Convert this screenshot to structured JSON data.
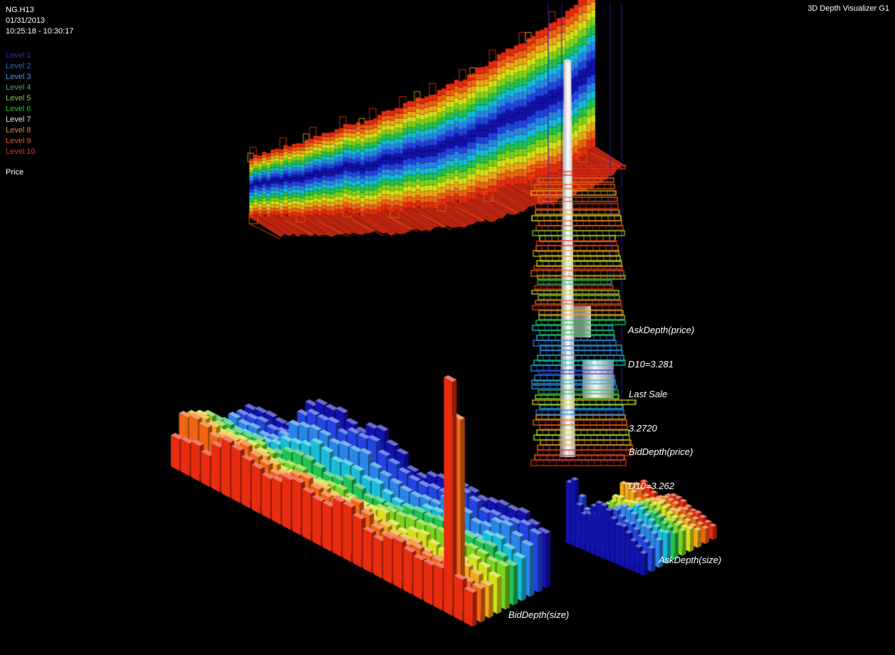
{
  "app": {
    "title": "3D Depth Visualizer G1"
  },
  "header": {
    "symbol": "NG.H13",
    "date": "01/31/2013",
    "time_range": "10:25:18 - 10:30:17"
  },
  "price_axis_label": "Price",
  "legend": {
    "items": [
      {
        "label": "Level 1",
        "color": "#2a2ac0"
      },
      {
        "label": "Level 2",
        "color": "#3a62d4"
      },
      {
        "label": "Level 3",
        "color": "#5a90dc"
      },
      {
        "label": "Level 4",
        "color": "#3aa862"
      },
      {
        "label": "Level 5",
        "color": "#8cc24e"
      },
      {
        "label": "Level 6",
        "color": "#34bc34"
      },
      {
        "label": "Level 7",
        "color": "#e6e6dc"
      },
      {
        "label": "Level 8",
        "color": "#d4884e"
      },
      {
        "label": "Level 9",
        "color": "#d45c3a"
      },
      {
        "label": "Level 10",
        "color": "#d43a30"
      }
    ]
  },
  "annotations": {
    "ask_depth_price": {
      "line1": "AskDepth(price)",
      "line2": "D10=3.281"
    },
    "last_sale": {
      "line1": "Last Sale",
      "line2": "3.2720"
    },
    "bid_depth_price": {
      "line1": "BidDepth(price)",
      "line2": "D10=3.262"
    },
    "bid_depth_size": "BidDepth(size)",
    "ask_depth_size": "AskDepth(size)"
  },
  "colors": {
    "background": "#000000",
    "text": "#ffffff",
    "jet": [
      "#1212b0",
      "#2244e0",
      "#2a85e8",
      "#18bcd8",
      "#22c352",
      "#7ad41e",
      "#d4e018",
      "#f0a818",
      "#f06414",
      "#e82c10"
    ],
    "floor_red": "#cc2810",
    "floor_edge": "#f06414",
    "frame_blue": "#1818b8",
    "cylinder_light": "#ffffff",
    "cylinder_mid": "#c8c8c8",
    "cylinder_dark": "#8a8a8a"
  },
  "chart_data": [
    {
      "name": "depth-history-ribbon",
      "type": "area",
      "title": "Bid/Ask depth price bands over time (10 levels each side, Level 1 center/blue to Level 10 outer/red)",
      "time_start": "10:25:18",
      "time_end": "10:30:17",
      "levels_per_side": 10,
      "price_path": [
        0.02,
        0.03,
        0.03,
        0.05,
        0.06,
        0.06,
        0.08,
        0.1,
        0.1,
        0.12,
        0.13,
        0.16,
        0.16,
        0.15,
        0.18,
        0.2,
        0.22,
        0.22,
        0.26,
        0.28,
        0.27,
        0.3,
        0.33,
        0.36,
        0.36,
        0.4,
        0.44,
        0.46,
        0.5,
        0.55,
        0.55,
        0.58,
        0.62,
        0.66,
        0.7,
        0.72,
        0.76,
        0.82,
        0.88,
        0.95
      ]
    },
    {
      "name": "price-ladder",
      "type": "ladder",
      "last_sale": 3.272,
      "ask_d10": 3.281,
      "bid_d10": 3.262,
      "rungs": [
        [
          232,
          9
        ],
        [
          241,
          9
        ],
        [
          250,
          8
        ],
        [
          259,
          8
        ],
        [
          268,
          7
        ],
        [
          277,
          8
        ],
        [
          286,
          9
        ],
        [
          295,
          7
        ],
        [
          303,
          6
        ],
        [
          310,
          8
        ],
        [
          317,
          9
        ],
        [
          324,
          5
        ],
        [
          331,
          6
        ],
        [
          338,
          9
        ],
        [
          345,
          8
        ],
        [
          352,
          7
        ],
        [
          359,
          5
        ],
        [
          366,
          6
        ],
        [
          373,
          9
        ],
        [
          380,
          8
        ],
        [
          387,
          5
        ],
        [
          394,
          4
        ],
        [
          401,
          9
        ],
        [
          408,
          6
        ],
        [
          415,
          5
        ],
        [
          422,
          8
        ],
        [
          429,
          9
        ],
        [
          436,
          7
        ],
        [
          443,
          5
        ],
        [
          450,
          4
        ],
        [
          457,
          3
        ],
        [
          464,
          4
        ],
        [
          471,
          3
        ],
        [
          478,
          2
        ],
        [
          485,
          3
        ],
        [
          492,
          2
        ],
        [
          499,
          4
        ],
        [
          506,
          3
        ],
        [
          513,
          2
        ],
        [
          520,
          1
        ],
        [
          527,
          2
        ],
        [
          534,
          3
        ],
        [
          541,
          2
        ],
        [
          548,
          4
        ],
        [
          555,
          5
        ],
        [
          562,
          6
        ],
        [
          569,
          3
        ],
        [
          576,
          2
        ],
        [
          583,
          7
        ],
        [
          590,
          8
        ],
        [
          597,
          9
        ],
        [
          604,
          6
        ],
        [
          611,
          5
        ],
        [
          618,
          7
        ],
        [
          625,
          8
        ],
        [
          632,
          9
        ],
        [
          639,
          8
        ],
        [
          646,
          9
        ]
      ]
    },
    {
      "name": "bid-depth-surface",
      "type": "bar3d",
      "label": "BidDepth(size)",
      "rows_back_to_front": "Level 1 (blue) back to Level 10 (red) front",
      "heights": [
        [
          0.4,
          0.38,
          0.42,
          0.4,
          0.44,
          0.55,
          0.9,
          1.0,
          1.05,
          1.1,
          1.05,
          1.0,
          1.05,
          1.1,
          1.0,
          0.95,
          0.8,
          0.78,
          0.8,
          0.85,
          0.9,
          0.95,
          1.0,
          0.95,
          0.9,
          0.95,
          1.0,
          1.05,
          1.0,
          0.95
        ],
        [
          0.38,
          0.36,
          0.4,
          0.38,
          0.42,
          0.52,
          0.85,
          0.95,
          1.0,
          1.05,
          1.0,
          0.95,
          1.0,
          1.05,
          0.95,
          0.9,
          0.75,
          0.72,
          0.75,
          0.8,
          0.85,
          0.9,
          0.95,
          0.9,
          0.85,
          0.9,
          0.95,
          1.0,
          0.95,
          0.9
        ],
        [
          0.36,
          0.35,
          0.38,
          0.36,
          0.4,
          0.5,
          0.75,
          0.85,
          0.9,
          0.95,
          0.9,
          0.85,
          0.9,
          0.95,
          0.85,
          0.8,
          0.68,
          0.65,
          0.68,
          0.72,
          0.78,
          0.82,
          0.88,
          0.82,
          0.78,
          0.82,
          0.88,
          0.92,
          0.88,
          0.82
        ],
        [
          0.36,
          0.34,
          0.37,
          0.35,
          0.38,
          0.45,
          0.6,
          0.68,
          0.74,
          0.78,
          0.74,
          0.7,
          0.74,
          0.78,
          0.7,
          0.66,
          0.58,
          0.56,
          0.58,
          0.62,
          0.68,
          0.72,
          0.78,
          0.72,
          0.68,
          0.72,
          0.78,
          0.82,
          0.78,
          0.72
        ],
        [
          0.5,
          0.46,
          0.42,
          0.46,
          0.5,
          0.42,
          0.48,
          0.54,
          0.58,
          0.62,
          0.58,
          0.55,
          0.58,
          0.62,
          0.56,
          0.52,
          0.55,
          0.58,
          0.62,
          0.66,
          0.7,
          0.74,
          0.78,
          0.72,
          0.68,
          0.72,
          0.76,
          0.8,
          0.76,
          0.7
        ],
        [
          0.58,
          0.54,
          0.5,
          0.46,
          0.5,
          0.55,
          0.5,
          0.46,
          0.5,
          0.55,
          0.5,
          0.46,
          0.5,
          0.55,
          0.5,
          0.46,
          0.5,
          0.55,
          0.6,
          0.64,
          0.68,
          0.72,
          0.76,
          0.7,
          0.66,
          0.7,
          0.74,
          0.78,
          0.74,
          0.68
        ],
        [
          0.68,
          0.64,
          0.6,
          0.56,
          0.6,
          0.64,
          0.6,
          0.56,
          0.52,
          0.48,
          0.52,
          0.56,
          0.6,
          0.56,
          0.52,
          0.56,
          0.6,
          0.64,
          0.68,
          0.6,
          0.56,
          0.6,
          0.64,
          0.6,
          0.56,
          0.6,
          0.64,
          0.68,
          0.64,
          0.6
        ],
        [
          0.78,
          0.74,
          0.7,
          0.66,
          0.7,
          0.74,
          0.7,
          0.66,
          0.62,
          0.58,
          0.62,
          0.66,
          0.7,
          0.66,
          0.62,
          0.66,
          0.7,
          0.74,
          0.66,
          0.58,
          0.54,
          0.58,
          0.62,
          0.58,
          0.54,
          0.58,
          0.62,
          0.66,
          0.62,
          0.56
        ],
        [
          0.88,
          0.84,
          0.8,
          0.76,
          0.8,
          0.84,
          0.8,
          0.76,
          0.72,
          0.68,
          0.72,
          0.76,
          0.8,
          0.76,
          0.72,
          0.76,
          0.8,
          0.84,
          0.74,
          0.64,
          0.6,
          0.64,
          0.68,
          0.64,
          0.6,
          0.64,
          0.68,
          3.3,
          0.6,
          0.52
        ],
        [
          0.5,
          0.55,
          0.6,
          0.55,
          0.8,
          0.88,
          0.84,
          0.8,
          0.76,
          0.72,
          0.76,
          0.8,
          0.84,
          0.8,
          0.76,
          0.8,
          0.84,
          0.88,
          0.78,
          0.68,
          0.64,
          0.68,
          0.72,
          0.68,
          0.64,
          0.68,
          0.72,
          3.6,
          0.64,
          0.55
        ]
      ]
    },
    {
      "name": "ask-depth-surface",
      "type": "bar3d",
      "label": "AskDepth(size)",
      "rows_back_to_front": "Level 10 (red) back to Level 1 (blue) front",
      "heights": [
        [
          0.45,
          0.5,
          0.45,
          0.4,
          0.36,
          0.4,
          0.44,
          0.48,
          0.5,
          0.48,
          0.44,
          0.4,
          0.36,
          0.32,
          0.28,
          0.25
        ],
        [
          0.5,
          0.55,
          0.5,
          0.44,
          0.4,
          0.44,
          0.5,
          0.54,
          0.56,
          0.54,
          0.5,
          0.46,
          0.42,
          0.38,
          0.34,
          0.3
        ],
        [
          0.6,
          0.65,
          0.55,
          0.46,
          0.44,
          0.48,
          0.54,
          0.6,
          0.62,
          0.6,
          0.56,
          0.52,
          0.48,
          0.44,
          0.4,
          0.36
        ],
        [
          0.45,
          0.5,
          0.46,
          0.44,
          0.46,
          0.52,
          0.58,
          0.64,
          0.68,
          0.66,
          0.62,
          0.58,
          0.54,
          0.5,
          0.46,
          0.42
        ],
        [
          0.4,
          0.44,
          0.42,
          0.42,
          0.46,
          0.52,
          0.6,
          0.66,
          0.72,
          0.72,
          0.68,
          0.64,
          0.6,
          0.56,
          0.52,
          0.48
        ],
        [
          0.36,
          0.4,
          0.38,
          0.4,
          0.44,
          0.52,
          0.6,
          0.68,
          0.76,
          0.78,
          0.74,
          0.7,
          0.66,
          0.62,
          0.58,
          0.54
        ],
        [
          0.34,
          0.38,
          0.36,
          0.4,
          0.46,
          0.54,
          0.62,
          0.7,
          0.78,
          0.82,
          0.8,
          0.76,
          0.7,
          0.66,
          0.6,
          0.56
        ],
        [
          0.44,
          0.48,
          0.44,
          0.48,
          0.54,
          0.62,
          0.7,
          0.78,
          0.84,
          0.86,
          0.82,
          0.76,
          0.7,
          0.64,
          0.58,
          0.52
        ],
        [
          0.75,
          0.85,
          0.65,
          0.6,
          0.64,
          0.7,
          0.78,
          0.84,
          0.88,
          0.84,
          0.78,
          0.7,
          0.64,
          0.58,
          0.52,
          0.46
        ],
        [
          1.15,
          1.3,
          0.85,
          0.75,
          0.8,
          0.9,
          1.0,
          1.05,
          1.0,
          0.92,
          0.84,
          0.76,
          0.68,
          0.6,
          0.52,
          0.46
        ]
      ]
    }
  ]
}
